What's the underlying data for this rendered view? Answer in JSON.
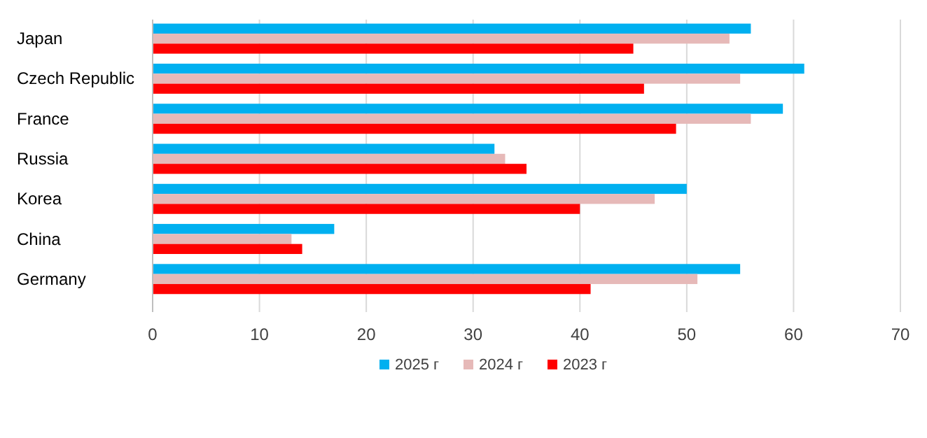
{
  "chart_data": {
    "type": "bar",
    "orientation": "horizontal",
    "categories": [
      "Japan",
      "Czech Republic",
      "France",
      "Russia",
      "Korea",
      "China",
      "Germany"
    ],
    "series": [
      {
        "name": "2025 г",
        "color": "#00b0f0",
        "values": [
          56,
          61,
          59,
          32,
          50,
          17,
          55
        ]
      },
      {
        "name": "2024 г",
        "color": "#e6b9b8",
        "values": [
          54,
          55,
          56,
          33,
          47,
          13,
          51
        ]
      },
      {
        "name": "2023 г",
        "color": "#ff0000",
        "values": [
          45,
          46,
          49,
          35,
          40,
          14,
          41
        ]
      }
    ],
    "xlim": [
      0,
      70
    ],
    "xticks": [
      0,
      10,
      20,
      30,
      40,
      50,
      60,
      70
    ],
    "grid": "x",
    "legend": "bottom"
  }
}
